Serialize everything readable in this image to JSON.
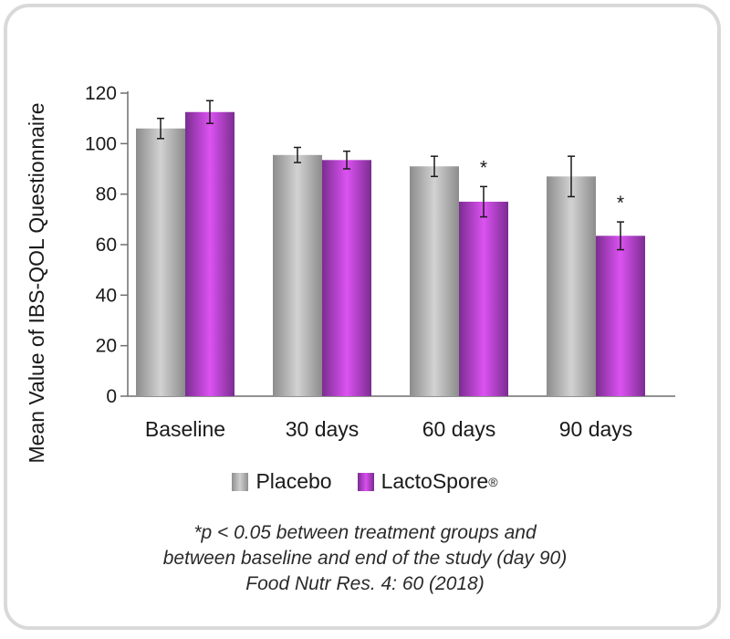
{
  "chart_data": {
    "type": "bar",
    "title": "",
    "xlabel": "",
    "ylabel": "Mean Value of IBS-QOL Questionnaire",
    "ylim": [
      0,
      120
    ],
    "yticks": [
      0,
      20,
      40,
      60,
      80,
      100,
      120
    ],
    "categories": [
      "Baseline",
      "30 days",
      "60 days",
      "90 days"
    ],
    "series": [
      {
        "name": "Placebo",
        "values": [
          106,
          95.5,
          91,
          87
        ],
        "errors": [
          4,
          3,
          4,
          8
        ],
        "color": "#a9a9a9"
      },
      {
        "name": "LactoSpore",
        "values": [
          112.5,
          93.5,
          77,
          63.5
        ],
        "errors": [
          4.5,
          3.5,
          6,
          5.5
        ],
        "color": "#b23fcf"
      }
    ],
    "annotations": [
      {
        "text": "*",
        "category": "60 days",
        "series": "LactoSpore"
      },
      {
        "text": "*",
        "category": "90 days",
        "series": "LactoSpore"
      }
    ],
    "legend_position": "bottom",
    "legend_trademark": "®",
    "grid": false
  },
  "notes": {
    "line1": "*p < 0.05 between treatment groups and",
    "line2": "between baseline and end of the study (day 90)",
    "line3": "Food Nutr Res. 4: 60 (2018)"
  }
}
